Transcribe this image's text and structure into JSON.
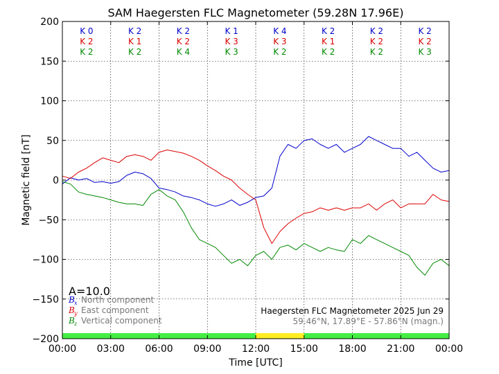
{
  "chart_data": {
    "type": "line",
    "title": "SAM Haegersten FLC Magnetometer (59.28N 17.96E)",
    "xlabel": "Time [UTC]",
    "ylabel": "Magnetic field [nT]",
    "xlim": [
      0,
      24
    ],
    "ylim": [
      -200,
      200
    ],
    "x_ticks": [
      0,
      3,
      6,
      9,
      12,
      15,
      18,
      21,
      24
    ],
    "x_tick_labels": [
      "00:00",
      "03:00",
      "06:00",
      "09:00",
      "12:00",
      "15:00",
      "18:00",
      "21:00",
      "00:00"
    ],
    "y_ticks": [
      -200,
      -150,
      -100,
      -50,
      0,
      50,
      100,
      150,
      200
    ],
    "y_tick_labels": [
      "−200",
      "−150",
      "−100",
      "−50",
      "0",
      "50",
      "100",
      "150",
      "200"
    ],
    "grid": true,
    "k_index_rows": [
      {
        "color": "#0000cc",
        "labels": [
          "K 0",
          "K 2",
          "K 2",
          "K 1",
          "K 4",
          "K 2",
          "K 2",
          "K 2"
        ]
      },
      {
        "color": "#dd0000",
        "labels": [
          "K 2",
          "K 1",
          "K 2",
          "K 3",
          "K 3",
          "K 1",
          "K 2",
          "K 2"
        ]
      },
      {
        "color": "#008800",
        "labels": [
          "K 2",
          "K 2",
          "K 4",
          "K 3",
          "K 2",
          "K 2",
          "K 2",
          "K 3"
        ]
      }
    ],
    "a_index": "A=10.0",
    "legend": [
      {
        "symbol": "B",
        "sub": "x",
        "label": "North component",
        "color": "#0000cc"
      },
      {
        "symbol": "B",
        "sub": "y",
        "label": "East component",
        "color": "#dd0000"
      },
      {
        "symbol": "B",
        "sub": "z",
        "label": "Vertical component",
        "color": "#008800"
      }
    ],
    "legend_placement": "bottom-left",
    "station_info": "Haegersten FLC Magnetometer 2025 Jun 29",
    "coords_info": "59.46°N, 17.89°E - 57.86°N (magn.)",
    "status_bar": [
      {
        "from": 0,
        "to": 12,
        "color": "#44ee44"
      },
      {
        "from": 12,
        "to": 15,
        "color": "#ffee22"
      },
      {
        "from": 15,
        "to": 24,
        "color": "#44ee44"
      }
    ],
    "series": [
      {
        "name": "North component",
        "color": "#0000cc",
        "x": [
          0,
          0.5,
          1,
          1.5,
          2,
          2.5,
          3,
          3.5,
          4,
          4.5,
          5,
          5.5,
          6,
          6.5,
          7,
          7.5,
          8,
          8.5,
          9,
          9.5,
          10,
          10.5,
          11,
          11.5,
          12,
          12.5,
          13,
          13.5,
          14,
          14.5,
          15,
          15.5,
          16,
          16.5,
          17,
          17.5,
          18,
          18.5,
          19,
          19.5,
          20,
          20.5,
          21,
          21.5,
          22,
          22.5,
          23,
          23.5,
          24
        ],
        "y": [
          -5,
          3,
          0,
          2,
          -3,
          -2,
          -4,
          -2,
          6,
          10,
          8,
          2,
          -10,
          -12,
          -15,
          -20,
          -22,
          -25,
          -30,
          -33,
          -30,
          -25,
          -32,
          -28,
          -22,
          -20,
          -10,
          30,
          45,
          40,
          50,
          52,
          45,
          40,
          45,
          35,
          40,
          45,
          55,
          50,
          45,
          40,
          40,
          30,
          35,
          25,
          15,
          10,
          12
        ]
      },
      {
        "name": "East component",
        "color": "#dd0000",
        "x": [
          0,
          0.5,
          1,
          1.5,
          2,
          2.5,
          3,
          3.5,
          4,
          4.5,
          5,
          5.5,
          6,
          6.5,
          7,
          7.5,
          8,
          8.5,
          9,
          9.5,
          10,
          10.5,
          11,
          11.5,
          12,
          12.5,
          13,
          13.5,
          14,
          14.5,
          15,
          15.5,
          16,
          16.5,
          17,
          17.5,
          18,
          18.5,
          19,
          19.5,
          20,
          20.5,
          21,
          21.5,
          22,
          22.5,
          23,
          23.5,
          24
        ],
        "y": [
          5,
          2,
          10,
          15,
          22,
          28,
          25,
          22,
          30,
          32,
          30,
          25,
          35,
          38,
          36,
          34,
          30,
          25,
          18,
          12,
          5,
          0,
          -10,
          -18,
          -25,
          -60,
          -80,
          -65,
          -55,
          -48,
          -42,
          -40,
          -35,
          -38,
          -35,
          -38,
          -35,
          -35,
          -30,
          -38,
          -30,
          -25,
          -35,
          -30,
          -30,
          -30,
          -18,
          -25,
          -27
        ]
      },
      {
        "name": "Vertical component",
        "color": "#008800",
        "x": [
          0,
          0.5,
          1,
          1.5,
          2,
          2.5,
          3,
          3.5,
          4,
          4.5,
          5,
          5.5,
          6,
          6.5,
          7,
          7.5,
          8,
          8.5,
          9,
          9.5,
          10,
          10.5,
          11,
          11.5,
          12,
          12.5,
          13,
          13.5,
          14,
          14.5,
          15,
          15.5,
          16,
          16.5,
          17,
          17.5,
          18,
          18.5,
          19,
          19.5,
          20,
          20.5,
          21,
          21.5,
          22,
          22.5,
          23,
          23.5,
          24
        ],
        "y": [
          -2,
          -5,
          -15,
          -18,
          -20,
          -22,
          -25,
          -28,
          -30,
          -30,
          -32,
          -18,
          -12,
          -20,
          -25,
          -40,
          -60,
          -75,
          -80,
          -85,
          -95,
          -105,
          -100,
          -108,
          -95,
          -90,
          -100,
          -85,
          -82,
          -88,
          -80,
          -85,
          -90,
          -85,
          -88,
          -90,
          -75,
          -80,
          -70,
          -75,
          -80,
          -85,
          -90,
          -95,
          -110,
          -120,
          -105,
          -100,
          -108
        ]
      }
    ]
  }
}
